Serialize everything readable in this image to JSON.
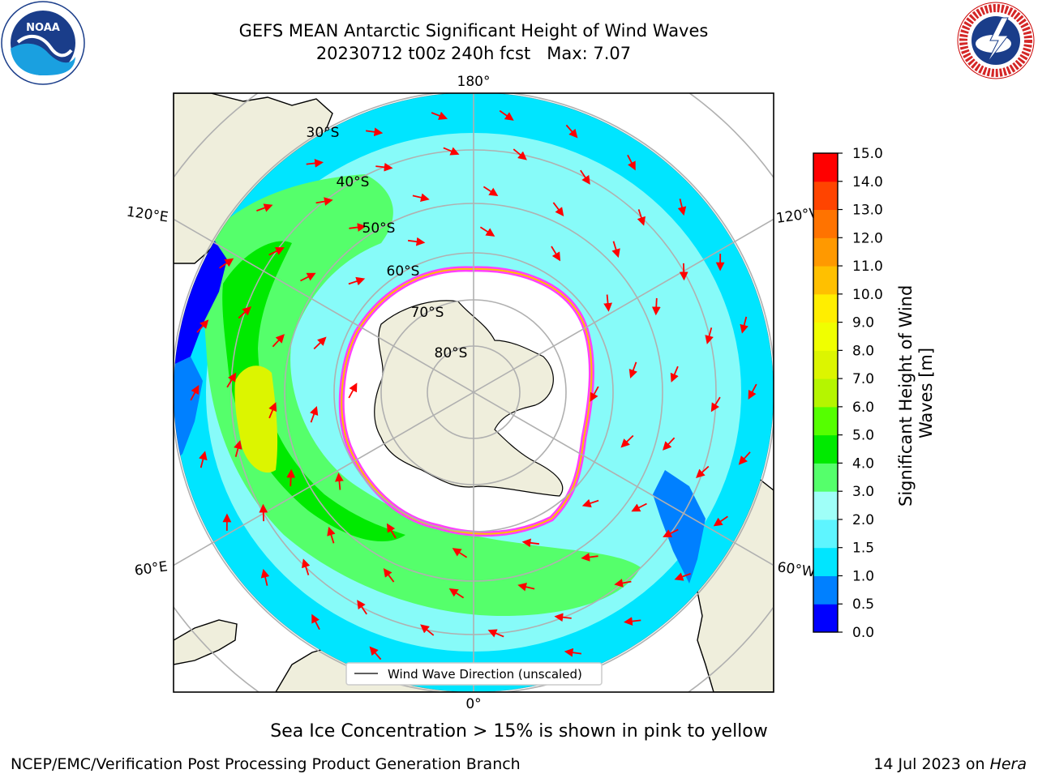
{
  "header": {
    "title_line1": "GEFS MEAN Antarctic Significant Height of Wind Waves",
    "title_line2": "20230712 t00z 240h fcst   Max: 7.07"
  },
  "map": {
    "projection": "south-polar-stereographic",
    "lon_labels": {
      "top": "180°",
      "bottom": "0°",
      "left_upper": "120°E",
      "left_lower": "60°E",
      "right_upper": "120°W",
      "right_lower": "60°W"
    },
    "lat_labels": [
      "30°S",
      "40°S",
      "50°S",
      "60°S",
      "70°S",
      "80°S"
    ],
    "legend_label": "Wind Wave Direction (unscaled)",
    "arrow_color": "#ff0000",
    "land_color": "#efeedc",
    "ice_note": "Sea Ice Concentration > 15% is shown in pink to yellow"
  },
  "colorbar": {
    "label": "Significant Height of Wind Waves [m]",
    "label_lines": [
      "Significant Height of Wind",
      "Waves [m]"
    ],
    "ticks": [
      "0.0",
      "0.5",
      "1.0",
      "1.5",
      "2.0",
      "3.0",
      "4.0",
      "5.0",
      "6.0",
      "7.0",
      "8.0",
      "9.0",
      "10.0",
      "11.0",
      "12.0",
      "13.0",
      "14.0",
      "15.0"
    ],
    "colors": [
      "#0000ff",
      "#0080ff",
      "#00e5ff",
      "#5ef5ff",
      "#9ffff8",
      "#55ff6b",
      "#00ea00",
      "#55ff00",
      "#b5f500",
      "#dcf500",
      "#f0ff00",
      "#ffee00",
      "#ffc000",
      "#ff9900",
      "#ff7300",
      "#ff4400",
      "#ff0000"
    ]
  },
  "footer": {
    "left": "NCEP/EMC/Verification Post Processing Product Generation Branch",
    "date": "14 Jul 2023 on ",
    "machine": "Hera"
  },
  "logos": {
    "left": "NOAA",
    "right": "NATIONAL WEATHER SERVICE"
  }
}
